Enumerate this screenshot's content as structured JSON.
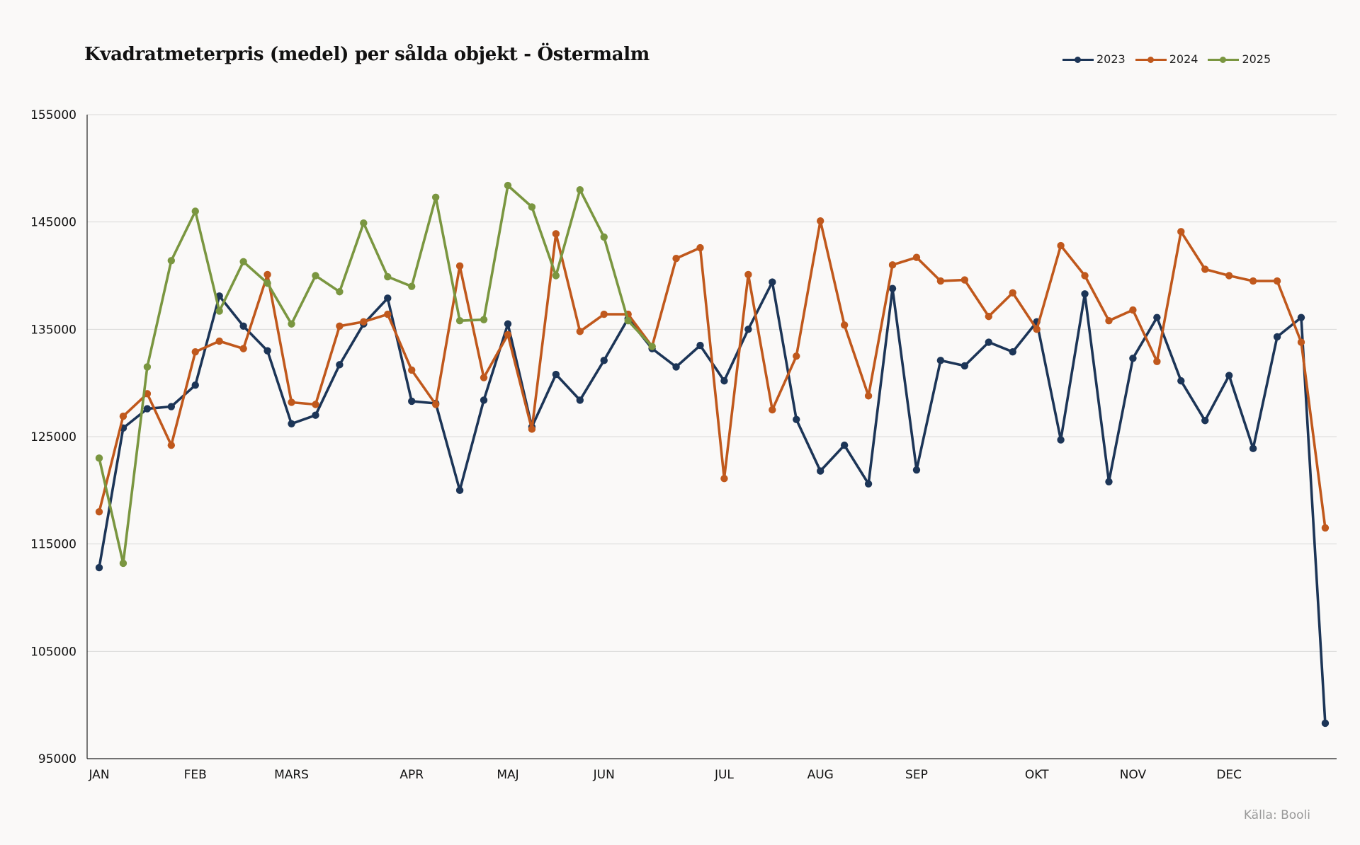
{
  "chart_data": {
    "type": "line",
    "title": "Kvadratmeterpris (medel) per sålda objekt - Östermalm",
    "source": "Källa: Booli",
    "ylim": [
      95000,
      155000
    ],
    "yticks": [
      95000,
      105000,
      115000,
      125000,
      135000,
      145000,
      155000
    ],
    "month_labels": [
      {
        "label": "JAN",
        "index": 0
      },
      {
        "label": "FEB",
        "index": 4
      },
      {
        "label": "MARS",
        "index": 8
      },
      {
        "label": "APR",
        "index": 13
      },
      {
        "label": "MAJ",
        "index": 17
      },
      {
        "label": "JUN",
        "index": 21
      },
      {
        "label": "JUL",
        "index": 26
      },
      {
        "label": "AUG",
        "index": 30
      },
      {
        "label": "SEP",
        "index": 34
      },
      {
        "label": "OKT",
        "index": 39
      },
      {
        "label": "NOV",
        "index": 43
      },
      {
        "label": "DEC",
        "index": 47
      }
    ],
    "grid": true,
    "legend_position": "top-right",
    "series": [
      {
        "name": "2023",
        "color": "#1c3557",
        "values": [
          112800,
          125800,
          127600,
          127800,
          129800,
          138100,
          135300,
          133000,
          126200,
          127000,
          131700,
          135500,
          137900,
          128300,
          128100,
          120000,
          128400,
          135500,
          125900,
          130800,
          128400,
          132100,
          136000,
          133200,
          131500,
          133500,
          130200,
          135000,
          139400,
          126600,
          121800,
          124200,
          120600,
          138800,
          121900,
          132100,
          131600,
          133800,
          132900,
          135700,
          124700,
          138300,
          120800,
          132300,
          136100,
          130200,
          126500,
          130700,
          123900,
          134300,
          136100,
          98300
        ]
      },
      {
        "name": "2024",
        "color": "#c0581c",
        "values": [
          118000,
          126900,
          129000,
          124200,
          132900,
          133900,
          133200,
          140100,
          128200,
          128000,
          135300,
          135700,
          136400,
          131200,
          128000,
          140900,
          130500,
          134500,
          125700,
          143900,
          134800,
          136400,
          136400,
          133400,
          141600,
          142600,
          121100,
          140100,
          127500,
          132500,
          145100,
          135400,
          128800,
          141000,
          141700,
          139500,
          139600,
          136200,
          138400,
          135000,
          142800,
          140000,
          135800,
          136800,
          132000,
          144100,
          140600,
          140000,
          139500,
          139500,
          133800,
          116500
        ]
      },
      {
        "name": "2025",
        "color": "#7a9640",
        "values": [
          123000,
          113200,
          131500,
          141400,
          146000,
          136700,
          141300,
          139300,
          135500,
          140000,
          138500,
          144900,
          139900,
          139000,
          147300,
          135800,
          135900,
          148400,
          146400,
          140000,
          148000,
          143600,
          135800,
          133400
        ]
      }
    ]
  }
}
